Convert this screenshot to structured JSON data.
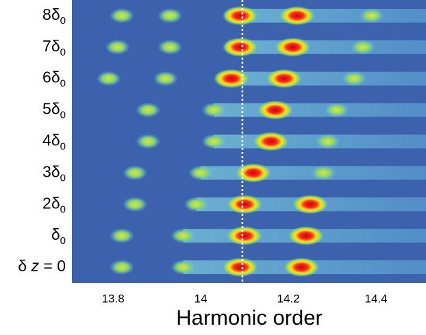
{
  "chart_data": {
    "type": "spectrogram",
    "x_label": "Harmonic order",
    "xlim": [
      13.706,
      14.514
    ],
    "xticks": [
      13.8,
      14,
      14.2,
      14.4
    ],
    "marker_x": 14.095,
    "categories": [
      [
        {
          "t": "8δ"
        },
        {
          "t": "0",
          "sub": true
        }
      ],
      [
        {
          "t": "7δ"
        },
        {
          "t": "0",
          "sub": true
        }
      ],
      [
        {
          "t": "6δ"
        },
        {
          "t": "0",
          "sub": true
        }
      ],
      [
        {
          "t": "5δ"
        },
        {
          "t": "0",
          "sub": true
        }
      ],
      [
        {
          "t": "4δ"
        },
        {
          "t": "0",
          "sub": true
        }
      ],
      [
        {
          "t": "3δ"
        },
        {
          "t": "0",
          "sub": true
        }
      ],
      [
        {
          "t": "2δ"
        },
        {
          "t": "0",
          "sub": true
        }
      ],
      [
        {
          "t": "δ"
        },
        {
          "t": "0",
          "sub": true
        }
      ],
      [
        {
          "t": "δ "
        },
        {
          "t": "z",
          "italic": true
        },
        {
          "t": " = 0"
        }
      ]
    ],
    "peaks": [
      [
        13.82,
        13.93,
        14.09,
        14.22,
        14.39
      ],
      [
        13.81,
        13.93,
        14.09,
        14.21,
        14.37
      ],
      [
        13.79,
        13.92,
        14.07,
        14.19,
        14.35
      ],
      [
        13.88,
        14.03,
        14.17,
        14.31
      ],
      [
        13.88,
        14.03,
        14.16,
        14.29
      ],
      [
        13.85,
        14.0,
        14.12,
        14.28
      ],
      [
        13.85,
        13.99,
        14.1,
        14.25
      ],
      [
        13.82,
        13.96,
        14.1,
        14.24
      ],
      [
        13.82,
        13.96,
        14.09,
        14.23
      ]
    ],
    "background": "#3c62ad"
  }
}
